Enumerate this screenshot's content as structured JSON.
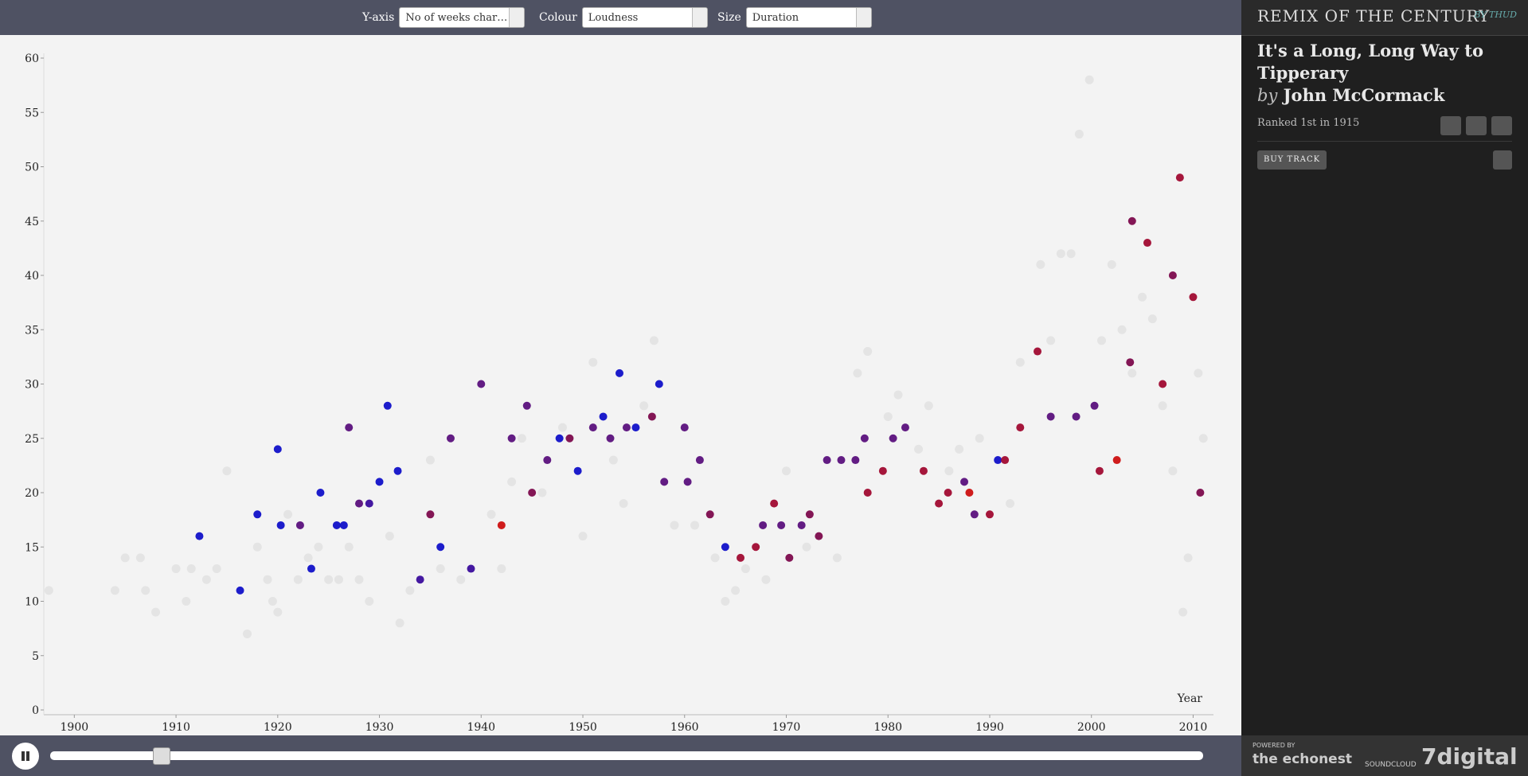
{
  "controls": {
    "yaxis_label": "Y-axis",
    "yaxis_value": "No of weeks char…",
    "colour_label": "Colour",
    "colour_value": "Loudness",
    "size_label": "Size",
    "size_value": "Duration"
  },
  "sidebar": {
    "brand": "REMIX OF THE CENTURY",
    "brand_by": "BY THUD",
    "song_title": "It's a Long, Long Way to Tipperary",
    "by": "by",
    "artist": "John McCormack",
    "rank": "Ranked 1st in 1915",
    "buy": "BUY TRACK",
    "powered_by": "POWERED BY",
    "echonest": "the echonest",
    "soundcloud": "SOUNDCLOUD",
    "digital": "7digital"
  },
  "chart_data": {
    "type": "scatter",
    "x_label": "Year",
    "xlim": [
      1897,
      2012
    ],
    "ylim": [
      0,
      60
    ],
    "xticks": [
      1900,
      1910,
      1920,
      1930,
      1940,
      1950,
      1960,
      1970,
      1980,
      1990,
      2000,
      2010
    ],
    "yticks": [
      0,
      5,
      10,
      15,
      20,
      25,
      30,
      35,
      40,
      45,
      50,
      55,
      60
    ],
    "series": [
      {
        "color": "#dadada",
        "x": [
          1897.5,
          1904,
          1905,
          1906.5,
          1907,
          1908,
          1910,
          1911,
          1911.5,
          1913,
          1914,
          1915,
          1917,
          1918,
          1919,
          1919.5,
          1920,
          1921,
          1922,
          1923,
          1924,
          1925,
          1926,
          1927,
          1928,
          1929,
          1931,
          1932,
          1933,
          1935,
          1936,
          1938,
          1941,
          1942,
          1943,
          1944,
          1946,
          1948,
          1950,
          1951,
          1953,
          1954,
          1956,
          1957,
          1959,
          1961,
          1963,
          1964,
          1965,
          1966,
          1968,
          1970,
          1972,
          1975,
          1977,
          1978,
          1980,
          1981,
          1983,
          1984,
          1986,
          1987,
          1989,
          1992,
          1993,
          1995,
          1996,
          1997,
          1998,
          1998.8,
          1999.8,
          2001,
          2002,
          2003,
          2004,
          2005,
          2006,
          2007,
          2008,
          2009,
          2009.5,
          2010.5,
          2011
        ],
        "values": [
          11,
          11,
          14,
          14,
          11,
          9,
          13,
          10,
          13,
          12,
          13,
          22,
          7,
          15,
          12,
          10,
          9,
          18,
          12,
          14,
          15,
          12,
          12,
          15,
          12,
          10,
          16,
          8,
          11,
          23,
          13,
          12,
          18,
          13,
          21,
          25,
          20,
          26,
          16,
          32,
          23,
          19,
          28,
          34,
          17,
          17,
          14,
          10,
          11,
          13,
          12,
          22,
          15,
          14,
          31,
          33,
          27,
          29,
          24,
          28,
          22,
          24,
          25,
          19,
          32,
          41,
          34,
          42,
          42,
          53,
          58,
          34,
          41,
          35,
          31,
          38,
          36,
          28,
          22,
          9,
          14,
          31,
          25
        ]
      },
      {
        "color": "#1010c8",
        "x": [
          1912.3,
          1916.3,
          1918,
          1920,
          1920.3,
          1923.3,
          1924.2,
          1925.8,
          1926.5,
          1930,
          1930.8,
          1931.8,
          1936,
          1947.7,
          1949.5,
          1952,
          1953.6,
          1955.2,
          1957.5,
          1964,
          1990.8
        ],
        "values": [
          16,
          11,
          18,
          24,
          17,
          13,
          20,
          17,
          17,
          21,
          28,
          22,
          15,
          25,
          22,
          27,
          31,
          26,
          30,
          15,
          23
        ]
      },
      {
        "color": "#3a0c9c",
        "x": [
          1929,
          1939,
          1934
        ],
        "values": [
          19,
          13,
          12
        ]
      },
      {
        "color": "#5a107c",
        "x": [
          1922.2,
          1927,
          1928,
          1937,
          1940,
          1943,
          1944.5,
          1946.5,
          1951,
          1952.7,
          1954.3,
          1958,
          1960,
          1960.3,
          1961.5,
          1967.7,
          1969.5,
          1971.5,
          1974,
          1975.4,
          1976.8,
          1977.7,
          1980.5,
          1981.7,
          1987.5,
          1988.5,
          1996,
          1998.5,
          2000.3
        ],
        "values": [
          17,
          26,
          19,
          25,
          30,
          25,
          28,
          23,
          26,
          25,
          26,
          21,
          26,
          21,
          23,
          17,
          17,
          17,
          23,
          23,
          23,
          25,
          25,
          26,
          21,
          18,
          27,
          27,
          28
        ]
      },
      {
        "color": "#7c0a4c",
        "x": [
          1935,
          1945,
          1948.7,
          1956.8,
          1962.5,
          1970.3,
          1972.3,
          1973.2,
          2003.8,
          2004,
          2008,
          2010.7
        ],
        "values": [
          18,
          20,
          25,
          27,
          18,
          14,
          18,
          16,
          32,
          45,
          40,
          20
        ]
      },
      {
        "color": "#a00a30",
        "x": [
          1965.5,
          1967,
          1968.8,
          1978,
          1979.5,
          1983.5,
          1985,
          1985.9,
          1990,
          1991.5,
          1993,
          1994.7,
          2000.8,
          2005.5,
          2007,
          2008.7,
          2010
        ],
        "values": [
          14,
          15,
          19,
          20,
          22,
          22,
          19,
          20,
          18,
          23,
          26,
          33,
          22,
          43,
          30,
          49,
          38
        ]
      },
      {
        "color": "#cc1010",
        "x": [
          1942,
          1988,
          2002.5
        ],
        "values": [
          17,
          20,
          23
        ]
      }
    ]
  }
}
